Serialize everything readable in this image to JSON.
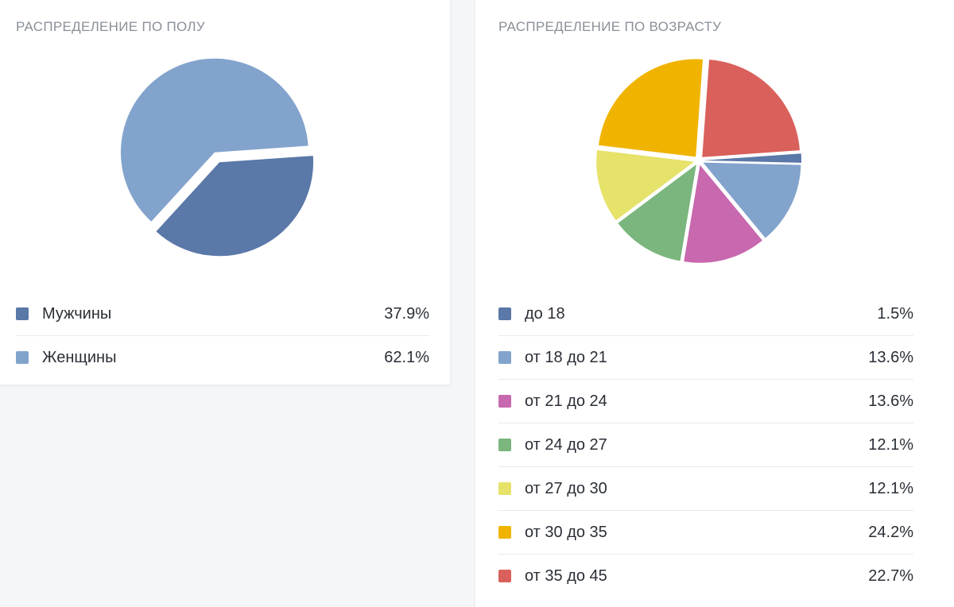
{
  "gender": {
    "title": "Распределение по полу",
    "chart_data": {
      "type": "pie",
      "title": "Распределение по полу",
      "slices": [
        {
          "label": "Мужчины",
          "display": "37.9%",
          "value": 37.9,
          "color": "#5a78a8"
        },
        {
          "label": "Женщины",
          "display": "62.1%",
          "value": 62.1,
          "color": "#82a3cc"
        }
      ]
    }
  },
  "age": {
    "title": "Распределение по возрасту",
    "chart_data": {
      "type": "pie",
      "title": "Распределение по возрасту",
      "slices": [
        {
          "label": "до 18",
          "display": "1.5%",
          "value": 1.5,
          "color": "#5a78a8"
        },
        {
          "label": "от 18 до 21",
          "display": "13.6%",
          "value": 13.6,
          "color": "#82a3cc"
        },
        {
          "label": "от 21 до 24",
          "display": "13.6%",
          "value": 13.6,
          "color": "#c868ae"
        },
        {
          "label": "от 24 до 27",
          "display": "12.1%",
          "value": 12.1,
          "color": "#7ab67e"
        },
        {
          "label": "от 27 до 30",
          "display": "12.1%",
          "value": 12.1,
          "color": "#e6e26a"
        },
        {
          "label": "от 30 до 35",
          "display": "24.2%",
          "value": 24.2,
          "color": "#f0b400"
        },
        {
          "label": "от 35 до 45",
          "display": "22.7%",
          "value": 22.7,
          "color": "#d9605b"
        }
      ]
    }
  }
}
